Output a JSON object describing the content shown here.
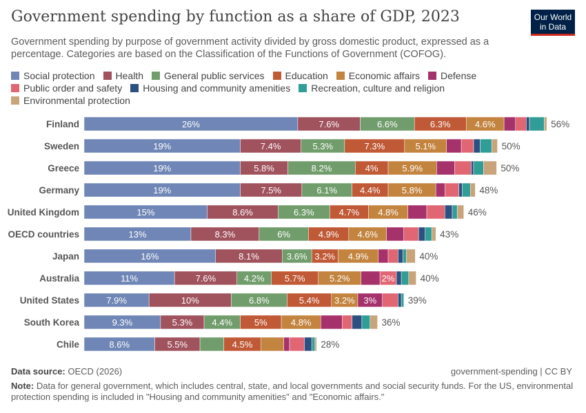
{
  "header": {
    "title": "Government spending by function as a share of GDP, 2023",
    "subtitle": "Government spending by purpose of government activity divided by gross domestic product, expressed as a percentage. Categories are based on the Classification of the Functions of Government (COFOG).",
    "logo": "Our World in Data"
  },
  "footer": {
    "source_label": "Data source:",
    "source": "OECD (2026)",
    "license": "government-spending | CC BY",
    "note_label": "Note:",
    "note": "Data for general government, which includes central, state, and local governments and social security funds. For the US, environmental protection spending is included in \"Housing and community amenities\" and \"Economic affairs.\""
  },
  "chart_data": {
    "type": "bar",
    "orientation": "horizontal",
    "stacked": true,
    "unit": "%",
    "legend_position": "top",
    "grid": false,
    "series": [
      {
        "name": "Social protection",
        "color": "#6f86b6"
      },
      {
        "name": "Health",
        "color": "#a0525d"
      },
      {
        "name": "General public services",
        "color": "#719d6c"
      },
      {
        "name": "Education",
        "color": "#c05936"
      },
      {
        "name": "Economic affairs",
        "color": "#c3843f"
      },
      {
        "name": "Defense",
        "color": "#a6326c"
      },
      {
        "name": "Public order and safety",
        "color": "#e06674"
      },
      {
        "name": "Housing and community amenities",
        "color": "#2d5080"
      },
      {
        "name": "Recreation, culture and religion",
        "color": "#309d96"
      },
      {
        "name": "Environmental protection",
        "color": "#c9a47a"
      }
    ],
    "categories": [
      "Finland",
      "Sweden",
      "Greece",
      "Germany",
      "United Kingdom",
      "OECD countries",
      "Japan",
      "Australia",
      "United States",
      "South Korea",
      "Chile"
    ],
    "values": [
      [
        26,
        7.6,
        6.6,
        6.3,
        4.6,
        1.4,
        1.3,
        0.4,
        1.8,
        0.3
      ],
      [
        19,
        7.4,
        5.3,
        7.3,
        5.1,
        1.8,
        1.5,
        0.8,
        1.4,
        0.7
      ],
      [
        19,
        5.8,
        8.2,
        4,
        5.9,
        2.2,
        2,
        0.3,
        1.2,
        1.6
      ],
      [
        19,
        7.5,
        6.1,
        4.4,
        5.8,
        1.1,
        1.7,
        0.4,
        1,
        0.6
      ],
      [
        15,
        8.6,
        6.3,
        4.7,
        4.8,
        2.3,
        2.2,
        0.9,
        0.6,
        0.8
      ],
      [
        13,
        8.3,
        6,
        4.9,
        4.6,
        2.1,
        1.8,
        0.8,
        0.8,
        0.5
      ],
      [
        16,
        8.1,
        3.6,
        3.2,
        4.9,
        1.2,
        1.2,
        0.6,
        0.4,
        1.1
      ],
      [
        11,
        7.6,
        4.2,
        5.7,
        5.2,
        2.3,
        2,
        0.6,
        0.9,
        0.9
      ],
      [
        7.9,
        10,
        6.8,
        5.4,
        3.2,
        3,
        1.9,
        0.4,
        0.3,
        0
      ],
      [
        9.3,
        5.3,
        4.4,
        5,
        4.8,
        2.6,
        1.2,
        1.2,
        1,
        0.9
      ],
      [
        8.6,
        5.5,
        2.9,
        4.5,
        2.8,
        0.7,
        1.8,
        0.9,
        0.4,
        0.2
      ]
    ],
    "data_labels": [
      [
        "26%",
        "7.6%",
        "6.6%",
        "6.3%",
        "4.6%",
        null,
        null,
        null,
        null,
        null
      ],
      [
        "19%",
        "7.4%",
        "5.3%",
        "7.3%",
        "5.1%",
        null,
        null,
        null,
        null,
        null
      ],
      [
        "19%",
        "5.8%",
        "8.2%",
        "4%",
        "5.9%",
        null,
        null,
        null,
        null,
        null
      ],
      [
        "19%",
        "7.5%",
        "6.1%",
        "4.4%",
        "5.8%",
        null,
        null,
        null,
        null,
        null
      ],
      [
        "15%",
        "8.6%",
        "6.3%",
        "4.7%",
        "4.8%",
        null,
        null,
        null,
        null,
        null
      ],
      [
        "13%",
        "8.3%",
        "6%",
        "4.9%",
        "4.6%",
        null,
        null,
        null,
        null,
        null
      ],
      [
        "16%",
        "8.1%",
        "3.6%",
        "3.2%",
        "4.9%",
        null,
        null,
        null,
        null,
        null
      ],
      [
        "11%",
        "7.6%",
        "4.2%",
        "5.7%",
        "5.2%",
        null,
        "2%",
        null,
        null,
        null
      ],
      [
        "7.9%",
        "10%",
        "6.8%",
        "5.4%",
        "3.2%",
        "3%",
        null,
        null,
        null,
        null
      ],
      [
        "9.3%",
        "5.3%",
        "4.4%",
        "5%",
        "4.8%",
        null,
        null,
        null,
        null,
        null
      ],
      [
        "8.6%",
        "5.5%",
        null,
        "4.5%",
        null,
        null,
        null,
        null,
        null,
        null
      ]
    ],
    "totals": [
      "56%",
      "50%",
      "50%",
      "48%",
      "46%",
      "43%",
      "40%",
      "40%",
      "39%",
      "36%",
      "28%"
    ]
  }
}
